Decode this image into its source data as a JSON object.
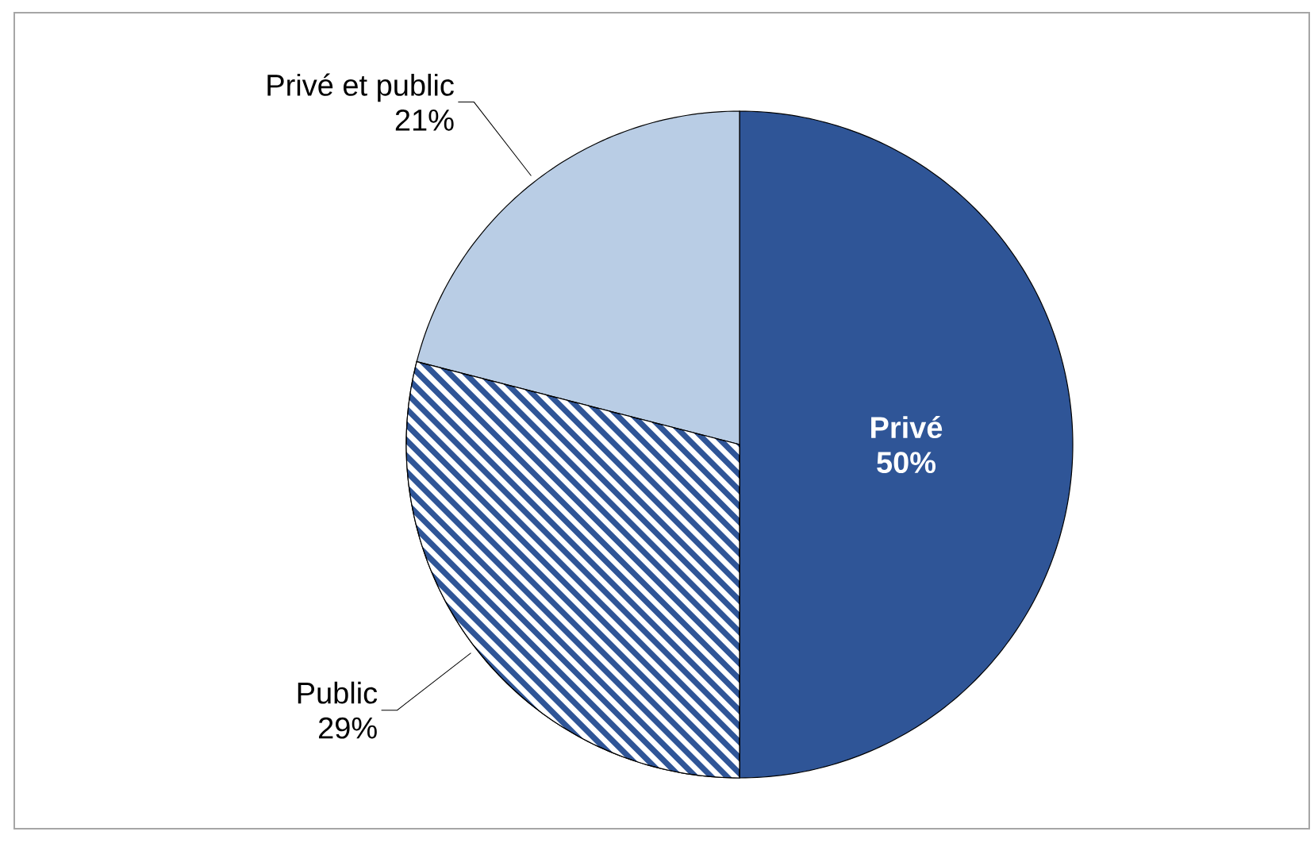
{
  "chart_data": {
    "type": "pie",
    "categories": [
      "Privé",
      "Public",
      "Privé et public"
    ],
    "values": [
      50,
      29,
      21
    ],
    "colors": [
      "#2f5597",
      "#2f5597",
      "#b9cde5"
    ],
    "value_labels": [
      "50%",
      "29%",
      "21%"
    ]
  }
}
